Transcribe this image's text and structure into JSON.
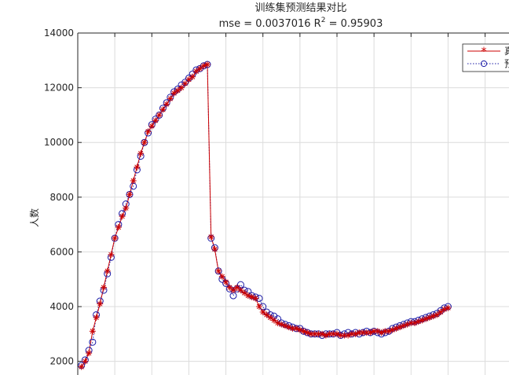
{
  "chart_data": {
    "type": "line",
    "title": "训练集预测结果对比",
    "subtitle": {
      "prefix": "mse = 0.0037016 R",
      "superscript": "2",
      "suffix": " = 0.95903"
    },
    "ylabel": "人数",
    "xlabel": "",
    "ylim": [
      1500,
      14000
    ],
    "yticks": [
      2000,
      4000,
      6000,
      8000,
      10000,
      12000,
      14000
    ],
    "ytick_labels": [
      "2000",
      "4000",
      "6000",
      "8000",
      "10000",
      "12000",
      "14000"
    ],
    "grid": true,
    "legend_position": "top-right",
    "colors": {
      "actual": "#cc0000",
      "predicted": "#1a1aa6",
      "grid": "#dcdcdc",
      "axis": "#262626"
    },
    "x": [
      1,
      2,
      3,
      4,
      5,
      6,
      7,
      8,
      9,
      10,
      11,
      12,
      13,
      14,
      15,
      16,
      17,
      18,
      19,
      20,
      21,
      22,
      23,
      24,
      25,
      26,
      27,
      28,
      29,
      30,
      31,
      32,
      33,
      34,
      35,
      36,
      37,
      38,
      39,
      40,
      41,
      42,
      43,
      44,
      45,
      46,
      47,
      48,
      49,
      50,
      51,
      52,
      53,
      54,
      55,
      56,
      57,
      58,
      59,
      60,
      61,
      62,
      63,
      64,
      65,
      66,
      67,
      68,
      69,
      70,
      71,
      72,
      73,
      74,
      75,
      76,
      77,
      78,
      79,
      80,
      81,
      82,
      83,
      84,
      85,
      86,
      87,
      88,
      89,
      90,
      91,
      92,
      93,
      94,
      95,
      96,
      97,
      98,
      99,
      100
    ],
    "series": [
      {
        "name": "真",
        "values": [
          1800,
          2000,
          2300,
          3100,
          3600,
          4100,
          4700,
          5300,
          5900,
          6500,
          6900,
          7300,
          7600,
          8100,
          8600,
          9100,
          9600,
          10000,
          10400,
          10600,
          10800,
          11000,
          11200,
          11400,
          11600,
          11800,
          11900,
          12000,
          12150,
          12300,
          12400,
          12600,
          12700,
          12800,
          12850,
          6550,
          6100,
          5300,
          5100,
          4900,
          4700,
          4600,
          4700,
          4600,
          4500,
          4400,
          4350,
          4300,
          4000,
          3800,
          3700,
          3600,
          3500,
          3400,
          3350,
          3300,
          3250,
          3200,
          3200,
          3150,
          3100,
          3050,
          3000,
          3000,
          3000,
          3000,
          2950,
          3000,
          3000,
          3000,
          2950,
          2950,
          2950,
          3000,
          3000,
          3050,
          3050,
          3050,
          3050,
          3100,
          3100,
          3050,
          3100,
          3100,
          3150,
          3200,
          3250,
          3300,
          3350,
          3400,
          3400,
          3450,
          3500,
          3550,
          3600,
          3650,
          3700,
          3800,
          3900,
          3950
        ]
      },
      {
        "name": "预",
        "values": [
          1850,
          2050,
          2400,
          2700,
          3700,
          4200,
          4600,
          5200,
          5800,
          6500,
          7000,
          7400,
          7750,
          8100,
          8400,
          9000,
          9500,
          10000,
          10350,
          10650,
          10850,
          11000,
          11250,
          11450,
          11650,
          11850,
          11950,
          12100,
          12200,
          12350,
          12500,
          12650,
          12700,
          12800,
          12850,
          6500,
          6150,
          5300,
          5000,
          4850,
          4650,
          4400,
          4650,
          4800,
          4600,
          4550,
          4400,
          4350,
          4300,
          4000,
          3800,
          3700,
          3650,
          3550,
          3400,
          3350,
          3300,
          3250,
          3200,
          3200,
          3100,
          3050,
          3000,
          3000,
          3000,
          2950,
          3000,
          3000,
          3000,
          3050,
          2950,
          3000,
          3050,
          3000,
          3050,
          3000,
          3050,
          3100,
          3050,
          3100,
          3050,
          3000,
          3050,
          3100,
          3200,
          3250,
          3300,
          3350,
          3400,
          3450,
          3450,
          3500,
          3550,
          3600,
          3650,
          3700,
          3750,
          3850,
          3950,
          4000
        ]
      }
    ]
  }
}
